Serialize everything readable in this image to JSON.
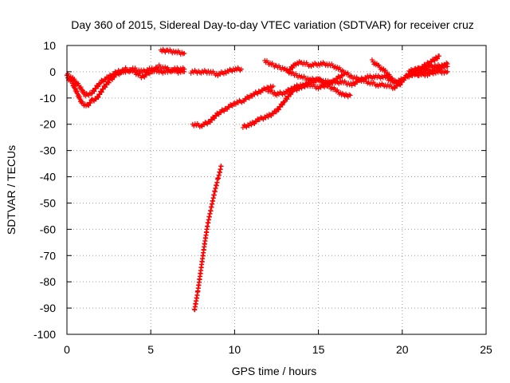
{
  "chart_data": {
    "type": "scatter",
    "title": "Day 360 of 2015, Sidereal Day-to-day VTEC variation (SDTVAR) for receiver cruz",
    "xlabel": "GPS time / hours",
    "ylabel": "SDTVAR / TECUs",
    "xlim": [
      0,
      25
    ],
    "ylim": [
      -100,
      10
    ],
    "x_ticks": [
      0,
      5,
      10,
      15,
      20,
      25
    ],
    "y_ticks": [
      10,
      0,
      -10,
      -20,
      -30,
      -40,
      -50,
      -60,
      -70,
      -80,
      -90,
      -100
    ],
    "grid": true,
    "marker": "+",
    "color": "#ff0000",
    "series": [
      {
        "points": [
          [
            0,
            -2
          ],
          [
            0.3,
            -4
          ],
          [
            0.6,
            -8
          ],
          [
            0.9,
            -12
          ],
          [
            1.2,
            -13
          ],
          [
            1.5,
            -11
          ],
          [
            1.8,
            -10
          ],
          [
            2.2,
            -6
          ],
          [
            2.6,
            -3
          ],
          [
            3.0,
            -1
          ],
          [
            3.5,
            1
          ],
          [
            4.0,
            0
          ],
          [
            4.5,
            -2
          ],
          [
            5.0,
            0
          ],
          [
            5.5,
            2
          ],
          [
            6.0,
            1
          ],
          [
            6.5,
            0
          ],
          [
            7.0,
            0
          ]
        ]
      },
      {
        "points": [
          [
            0,
            -1
          ],
          [
            0.4,
            -3
          ],
          [
            0.8,
            -6
          ],
          [
            1.1,
            -9
          ],
          [
            1.5,
            -8
          ],
          [
            2.0,
            -4
          ],
          [
            2.5,
            -2
          ],
          [
            3.0,
            0
          ],
          [
            3.5,
            0
          ],
          [
            4.0,
            1
          ],
          [
            4.5,
            0
          ],
          [
            5.0,
            1
          ],
          [
            5.5,
            0
          ],
          [
            6.0,
            0
          ],
          [
            6.5,
            1
          ],
          [
            7.0,
            1
          ]
        ]
      },
      {
        "points": [
          [
            5.6,
            8
          ],
          [
            6.0,
            8
          ],
          [
            6.5,
            7.5
          ],
          [
            7.0,
            7
          ]
        ]
      },
      {
        "points": [
          [
            7.4,
            0
          ],
          [
            8.0,
            0
          ],
          [
            8.5,
            0
          ],
          [
            9.0,
            -1
          ],
          [
            9.5,
            0
          ],
          [
            10.0,
            1
          ],
          [
            10.4,
            1
          ]
        ]
      },
      {
        "points": [
          [
            7.5,
            -20
          ],
          [
            8.0,
            -20.5
          ],
          [
            8.5,
            -19
          ],
          [
            9.0,
            -16
          ],
          [
            9.5,
            -14
          ],
          [
            10.0,
            -12
          ],
          [
            10.5,
            -11
          ],
          [
            11.0,
            -9
          ],
          [
            11.5,
            -7.5
          ],
          [
            12.0,
            -6
          ],
          [
            12.3,
            -5.5
          ]
        ]
      },
      {
        "points": [
          [
            7.6,
            -91
          ],
          [
            7.8,
            -84
          ],
          [
            8.0,
            -75
          ],
          [
            8.2,
            -66
          ],
          [
            8.4,
            -58
          ],
          [
            8.6,
            -52
          ],
          [
            8.8,
            -46
          ],
          [
            9.0,
            -41
          ],
          [
            9.2,
            -36
          ]
        ]
      },
      {
        "points": [
          [
            10.5,
            -21
          ],
          [
            11.0,
            -20
          ],
          [
            11.5,
            -18
          ],
          [
            12.0,
            -17
          ],
          [
            12.5,
            -15
          ],
          [
            13.0,
            -11
          ],
          [
            13.5,
            -7
          ],
          [
            14.0,
            -6
          ],
          [
            14.5,
            -4
          ],
          [
            15.0,
            -3
          ],
          [
            15.5,
            -4
          ],
          [
            16.0,
            -4
          ],
          [
            16.5,
            -4
          ],
          [
            17.0,
            -5
          ],
          [
            17.5,
            -3
          ],
          [
            18.0,
            -2
          ],
          [
            18.5,
            -2
          ],
          [
            19.0,
            -2
          ],
          [
            19.5,
            -4
          ],
          [
            20.0,
            -3
          ]
        ]
      },
      {
        "points": [
          [
            11.8,
            4
          ],
          [
            12.5,
            2
          ],
          [
            13.0,
            1
          ],
          [
            13.5,
            -1
          ],
          [
            14.0,
            -2
          ],
          [
            14.5,
            -3
          ],
          [
            15.0,
            -3
          ],
          [
            15.5,
            -5
          ],
          [
            16.0,
            -7
          ],
          [
            16.5,
            -9
          ],
          [
            16.9,
            -9
          ]
        ]
      },
      {
        "points": [
          [
            12.0,
            -7
          ],
          [
            12.5,
            -8.5
          ],
          [
            13.0,
            -8
          ],
          [
            13.5,
            -6
          ],
          [
            14.0,
            -5
          ],
          [
            14.5,
            -5
          ],
          [
            15.0,
            -6
          ],
          [
            15.5,
            -5
          ],
          [
            16.0,
            -3
          ],
          [
            16.5,
            -1
          ]
        ]
      },
      {
        "points": [
          [
            13.2,
            0
          ],
          [
            13.6,
            3
          ],
          [
            14.0,
            3.5
          ],
          [
            14.5,
            2.5
          ],
          [
            15.0,
            3
          ],
          [
            15.5,
            3
          ],
          [
            16.0,
            2
          ],
          [
            16.5,
            0
          ],
          [
            17.0,
            -2
          ],
          [
            17.5,
            -3
          ],
          [
            18.0,
            -4
          ],
          [
            18.5,
            -5
          ],
          [
            19.0,
            -5
          ],
          [
            19.5,
            -6
          ],
          [
            20.0,
            -4
          ]
        ]
      },
      {
        "points": [
          [
            18.2,
            4
          ],
          [
            18.6,
            2
          ],
          [
            19.0,
            0
          ],
          [
            19.4,
            -3
          ],
          [
            19.8,
            -5
          ],
          [
            20.2,
            -2
          ],
          [
            20.6,
            0
          ],
          [
            21.0,
            1
          ],
          [
            21.5,
            3
          ],
          [
            22.0,
            5
          ],
          [
            22.2,
            6
          ]
        ]
      },
      {
        "points": [
          [
            20.2,
            -2
          ],
          [
            20.6,
            -1
          ],
          [
            21.0,
            0
          ],
          [
            21.5,
            0
          ],
          [
            22.0,
            1
          ],
          [
            22.5,
            2
          ],
          [
            22.7,
            2
          ]
        ]
      },
      {
        "points": [
          [
            20.4,
            0
          ],
          [
            20.8,
            1
          ],
          [
            21.2,
            1
          ],
          [
            21.6,
            2
          ],
          [
            22.0,
            2
          ],
          [
            22.5,
            2.5
          ],
          [
            22.7,
            3
          ]
        ]
      },
      {
        "points": [
          [
            20.6,
            -1
          ],
          [
            21.0,
            -1
          ],
          [
            21.5,
            -1
          ],
          [
            22.0,
            0
          ],
          [
            22.5,
            0
          ],
          [
            22.7,
            0
          ]
        ]
      }
    ]
  }
}
